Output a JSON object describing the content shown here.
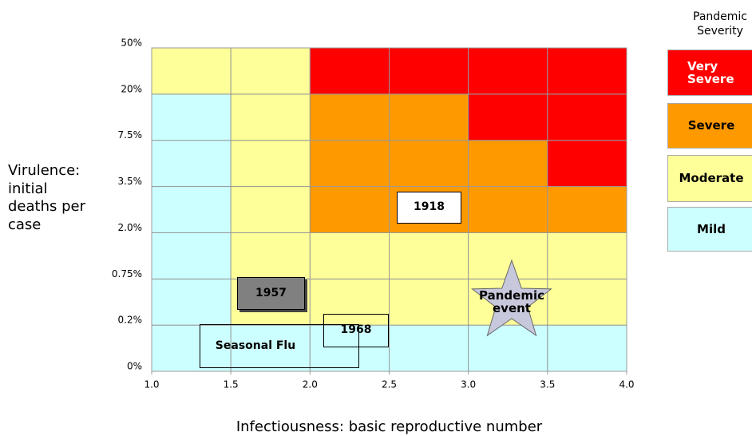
{
  "chart_data": {
    "type": "heatmap",
    "x_label": "Infectiousness: basic reproductive number",
    "y_label": "Virulence: initial deaths per case",
    "xlim": [
      1,
      4
    ],
    "xticks": [
      {
        "value": 1,
        "label": "1.0"
      },
      {
        "value": 1.5,
        "label": "1.5"
      },
      {
        "value": 2,
        "label": "2.0"
      },
      {
        "value": 2.5,
        "label": "2.5"
      },
      {
        "value": 3,
        "label": "3.0"
      },
      {
        "value": 3.5,
        "label": "3.5"
      },
      {
        "value": 4,
        "label": "4.0"
      }
    ],
    "ytick_labels": [
      "0%",
      "0.2%",
      "0.75%",
      "2.0%",
      "3.5%",
      "7.5%",
      "20%",
      "50%"
    ],
    "legend_title": "Pandemic Severity",
    "levels": [
      {
        "name": "Very Severe",
        "color": "#ff0000",
        "text_color": "#ffffff"
      },
      {
        "name": "Severe",
        "color": "#ff9900",
        "text_color": "#000000"
      },
      {
        "name": "Moderate",
        "color": "#ffff99",
        "text_color": "#000000"
      },
      {
        "name": "Mild",
        "color": "#ccffff",
        "text_color": "#000000"
      }
    ],
    "cells": [
      [
        "Mild",
        "Mild",
        "Mild",
        "Mild",
        "Mild",
        "Mild"
      ],
      [
        "Mild",
        "Moderate",
        "Moderate",
        "Moderate",
        "Moderate",
        "Moderate"
      ],
      [
        "Mild",
        "Moderate",
        "Moderate",
        "Moderate",
        "Moderate",
        "Moderate"
      ],
      [
        "Mild",
        "Moderate",
        "Severe",
        "Severe",
        "Severe",
        "Severe"
      ],
      [
        "Mild",
        "Moderate",
        "Severe",
        "Severe",
        "Severe",
        "Very Severe"
      ],
      [
        "Mild",
        "Moderate",
        "Severe",
        "Severe",
        "Very Severe",
        "Very Severe"
      ],
      [
        "Moderate",
        "Moderate",
        "Very Severe",
        "Very Severe",
        "Very Severe",
        "Very Severe"
      ]
    ],
    "annotations": [
      "1918",
      "1957",
      "1968",
      "Seasonal Flu",
      "Pandemic event"
    ]
  }
}
